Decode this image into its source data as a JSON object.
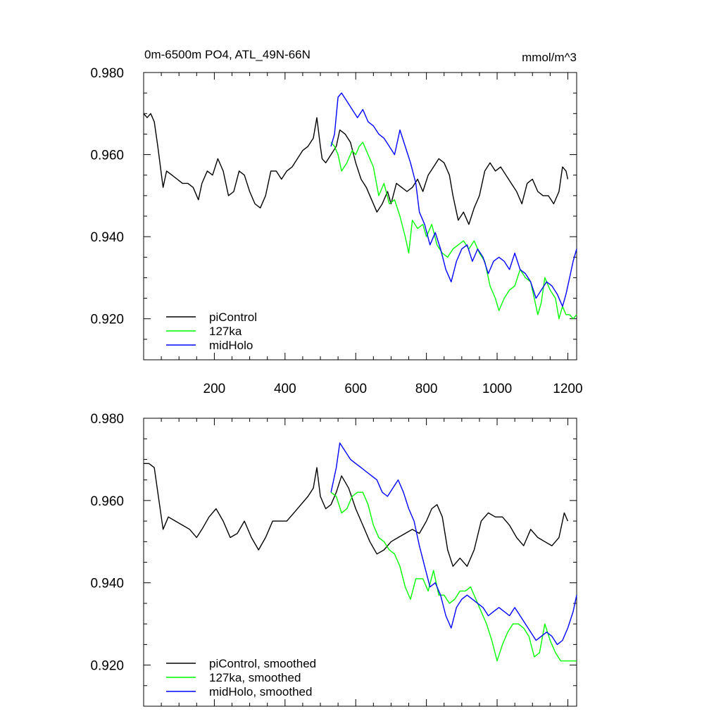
{
  "chart_data": [
    {
      "type": "line",
      "title": "0m-6500m PO4, ATL_49N-66N",
      "units": "mmol/m^3",
      "xlim": [
        0,
        1225
      ],
      "ylim": [
        0.91,
        0.98
      ],
      "yticks": [
        0.92,
        0.94,
        0.96,
        0.98
      ],
      "ytick_labels": [
        "0.920",
        "0.940",
        "0.960",
        "0.980"
      ],
      "xticks": [
        200,
        400,
        600,
        800,
        1000,
        1200
      ],
      "xtick_labels": [
        "200",
        "400",
        "600",
        "800",
        "1000",
        "1200"
      ],
      "show_xtick_labels": true,
      "legend_position": "bottom-left",
      "series": [
        {
          "name": "piControl",
          "color": "#000000",
          "x": [
            0,
            10,
            20,
            30,
            40,
            55,
            65,
            80,
            95,
            110,
            125,
            140,
            155,
            165,
            180,
            195,
            210,
            225,
            240,
            255,
            270,
            285,
            300,
            315,
            330,
            345,
            360,
            375,
            390,
            405,
            420,
            435,
            450,
            465,
            480,
            490,
            500,
            505,
            515,
            530,
            545,
            555,
            570,
            585,
            600,
            615,
            630,
            645,
            660,
            675,
            690,
            700,
            715,
            730,
            745,
            760,
            775,
            790,
            805,
            820,
            835,
            850,
            865,
            875,
            890,
            905,
            920,
            935,
            950,
            965,
            980,
            995,
            1010,
            1025,
            1040,
            1055,
            1070,
            1085,
            1100,
            1115,
            1130,
            1145,
            1160,
            1175,
            1185,
            1195,
            1200
          ],
          "y": [
            0.97,
            0.969,
            0.97,
            0.968,
            0.962,
            0.952,
            0.956,
            0.955,
            0.954,
            0.953,
            0.953,
            0.952,
            0.949,
            0.953,
            0.956,
            0.955,
            0.959,
            0.956,
            0.95,
            0.951,
            0.956,
            0.955,
            0.951,
            0.948,
            0.947,
            0.95,
            0.956,
            0.956,
            0.954,
            0.956,
            0.957,
            0.959,
            0.961,
            0.962,
            0.964,
            0.969,
            0.962,
            0.959,
            0.958,
            0.96,
            0.962,
            0.966,
            0.965,
            0.963,
            0.958,
            0.954,
            0.952,
            0.949,
            0.946,
            0.948,
            0.951,
            0.948,
            0.953,
            0.952,
            0.951,
            0.952,
            0.954,
            0.951,
            0.955,
            0.957,
            0.959,
            0.958,
            0.955,
            0.95,
            0.944,
            0.946,
            0.943,
            0.947,
            0.95,
            0.956,
            0.958,
            0.956,
            0.957,
            0.955,
            0.953,
            0.951,
            0.948,
            0.953,
            0.954,
            0.951,
            0.95,
            0.95,
            0.948,
            0.951,
            0.957,
            0.956,
            0.954
          ]
        },
        {
          "name": "127ka",
          "color": "#00ff00",
          "x": [
            530,
            540,
            550,
            560,
            575,
            590,
            600,
            610,
            620,
            635,
            650,
            665,
            680,
            695,
            710,
            725,
            740,
            750,
            760,
            775,
            790,
            800,
            815,
            830,
            845,
            860,
            875,
            890,
            905,
            920,
            935,
            950,
            965,
            980,
            995,
            1005,
            1020,
            1035,
            1050,
            1065,
            1080,
            1095,
            1105,
            1115,
            1125,
            1135,
            1150,
            1165,
            1175,
            1185,
            1195,
            1205,
            1215,
            1225
          ],
          "y": [
            0.963,
            0.962,
            0.96,
            0.956,
            0.958,
            0.961,
            0.96,
            0.962,
            0.963,
            0.96,
            0.957,
            0.95,
            0.953,
            0.948,
            0.949,
            0.945,
            0.94,
            0.936,
            0.944,
            0.942,
            0.943,
            0.94,
            0.943,
            0.938,
            0.936,
            0.935,
            0.937,
            0.938,
            0.939,
            0.937,
            0.939,
            0.936,
            0.934,
            0.928,
            0.925,
            0.922,
            0.925,
            0.927,
            0.928,
            0.932,
            0.93,
            0.929,
            0.925,
            0.921,
            0.924,
            0.93,
            0.927,
            0.925,
            0.92,
            0.923,
            0.921,
            0.921,
            0.92,
            0.921
          ]
        },
        {
          "name": "midHolo",
          "color": "#0000ff",
          "x": [
            530,
            540,
            550,
            560,
            575,
            590,
            605,
            620,
            635,
            650,
            665,
            680,
            695,
            710,
            725,
            740,
            755,
            770,
            780,
            795,
            810,
            825,
            840,
            855,
            870,
            885,
            900,
            915,
            930,
            945,
            960,
            975,
            990,
            1005,
            1020,
            1035,
            1050,
            1065,
            1080,
            1095,
            1110,
            1125,
            1140,
            1155,
            1170,
            1185,
            1195,
            1205,
            1215,
            1225
          ],
          "y": [
            0.962,
            0.965,
            0.974,
            0.975,
            0.973,
            0.971,
            0.969,
            0.971,
            0.968,
            0.967,
            0.965,
            0.964,
            0.962,
            0.96,
            0.966,
            0.962,
            0.958,
            0.953,
            0.946,
            0.943,
            0.938,
            0.941,
            0.937,
            0.932,
            0.929,
            0.934,
            0.937,
            0.938,
            0.934,
            0.937,
            0.935,
            0.931,
            0.934,
            0.935,
            0.934,
            0.932,
            0.936,
            0.932,
            0.931,
            0.929,
            0.925,
            0.927,
            0.929,
            0.928,
            0.926,
            0.923,
            0.926,
            0.93,
            0.934,
            0.937
          ]
        }
      ]
    },
    {
      "type": "line",
      "title": "",
      "units": "",
      "xlim": [
        0,
        1225
      ],
      "ylim": [
        0.91,
        0.98
      ],
      "yticks": [
        0.92,
        0.94,
        0.96,
        0.98
      ],
      "ytick_labels": [
        "0.920",
        "0.940",
        "0.960",
        "0.980"
      ],
      "xticks": [
        200,
        400,
        600,
        800,
        1000,
        1200
      ],
      "xtick_labels": [],
      "show_xtick_labels": false,
      "legend_position": "bottom-left",
      "series": [
        {
          "name": "piControl, smoothed",
          "color": "#000000",
          "x": [
            0,
            15,
            30,
            40,
            55,
            70,
            90,
            110,
            130,
            150,
            165,
            185,
            205,
            225,
            245,
            265,
            285,
            305,
            325,
            345,
            365,
            385,
            405,
            425,
            445,
            465,
            480,
            490,
            500,
            515,
            530,
            545,
            560,
            580,
            600,
            620,
            640,
            660,
            680,
            700,
            720,
            740,
            760,
            780,
            800,
            815,
            830,
            845,
            860,
            875,
            895,
            915,
            935,
            955,
            975,
            995,
            1015,
            1035,
            1055,
            1075,
            1095,
            1115,
            1135,
            1155,
            1175,
            1190,
            1200
          ],
          "y": [
            0.969,
            0.969,
            0.968,
            0.962,
            0.953,
            0.956,
            0.955,
            0.954,
            0.953,
            0.951,
            0.953,
            0.956,
            0.958,
            0.955,
            0.951,
            0.952,
            0.955,
            0.951,
            0.948,
            0.951,
            0.955,
            0.955,
            0.955,
            0.957,
            0.959,
            0.961,
            0.963,
            0.968,
            0.961,
            0.958,
            0.959,
            0.962,
            0.966,
            0.963,
            0.958,
            0.954,
            0.95,
            0.947,
            0.948,
            0.95,
            0.951,
            0.952,
            0.953,
            0.952,
            0.955,
            0.958,
            0.959,
            0.956,
            0.948,
            0.944,
            0.946,
            0.944,
            0.948,
            0.955,
            0.957,
            0.956,
            0.956,
            0.954,
            0.951,
            0.949,
            0.953,
            0.951,
            0.95,
            0.949,
            0.951,
            0.957,
            0.955
          ]
        },
        {
          "name": "127ka, smoothed",
          "color": "#00ff00",
          "x": [
            530,
            545,
            560,
            575,
            590,
            605,
            620,
            635,
            650,
            665,
            680,
            695,
            710,
            725,
            740,
            755,
            770,
            790,
            805,
            820,
            835,
            850,
            865,
            880,
            895,
            910,
            925,
            940,
            955,
            970,
            985,
            1000,
            1015,
            1030,
            1045,
            1060,
            1075,
            1090,
            1105,
            1120,
            1135,
            1150,
            1165,
            1180,
            1195,
            1210,
            1225
          ],
          "y": [
            0.962,
            0.961,
            0.957,
            0.958,
            0.961,
            0.962,
            0.962,
            0.959,
            0.954,
            0.951,
            0.95,
            0.948,
            0.947,
            0.944,
            0.939,
            0.936,
            0.941,
            0.941,
            0.938,
            0.943,
            0.937,
            0.937,
            0.935,
            0.936,
            0.938,
            0.938,
            0.939,
            0.936,
            0.933,
            0.93,
            0.926,
            0.921,
            0.925,
            0.928,
            0.93,
            0.93,
            0.929,
            0.927,
            0.922,
            0.923,
            0.93,
            0.926,
            0.923,
            0.921,
            0.921,
            0.921,
            0.921
          ]
        },
        {
          "name": "midHolo, smoothed",
          "color": "#0000ff",
          "x": [
            530,
            545,
            555,
            570,
            585,
            600,
            615,
            630,
            645,
            660,
            675,
            690,
            705,
            720,
            735,
            750,
            765,
            780,
            795,
            810,
            825,
            840,
            855,
            870,
            885,
            900,
            915,
            930,
            945,
            960,
            975,
            990,
            1005,
            1020,
            1035,
            1050,
            1065,
            1080,
            1095,
            1110,
            1125,
            1140,
            1155,
            1170,
            1185,
            1200,
            1215,
            1225
          ],
          "y": [
            0.962,
            0.968,
            0.974,
            0.972,
            0.97,
            0.969,
            0.968,
            0.967,
            0.966,
            0.965,
            0.962,
            0.961,
            0.963,
            0.965,
            0.962,
            0.958,
            0.955,
            0.949,
            0.944,
            0.939,
            0.94,
            0.937,
            0.932,
            0.929,
            0.934,
            0.936,
            0.937,
            0.936,
            0.935,
            0.934,
            0.932,
            0.933,
            0.934,
            0.933,
            0.932,
            0.934,
            0.932,
            0.93,
            0.928,
            0.926,
            0.927,
            0.928,
            0.927,
            0.925,
            0.926,
            0.929,
            0.933,
            0.937
          ]
        }
      ]
    }
  ]
}
